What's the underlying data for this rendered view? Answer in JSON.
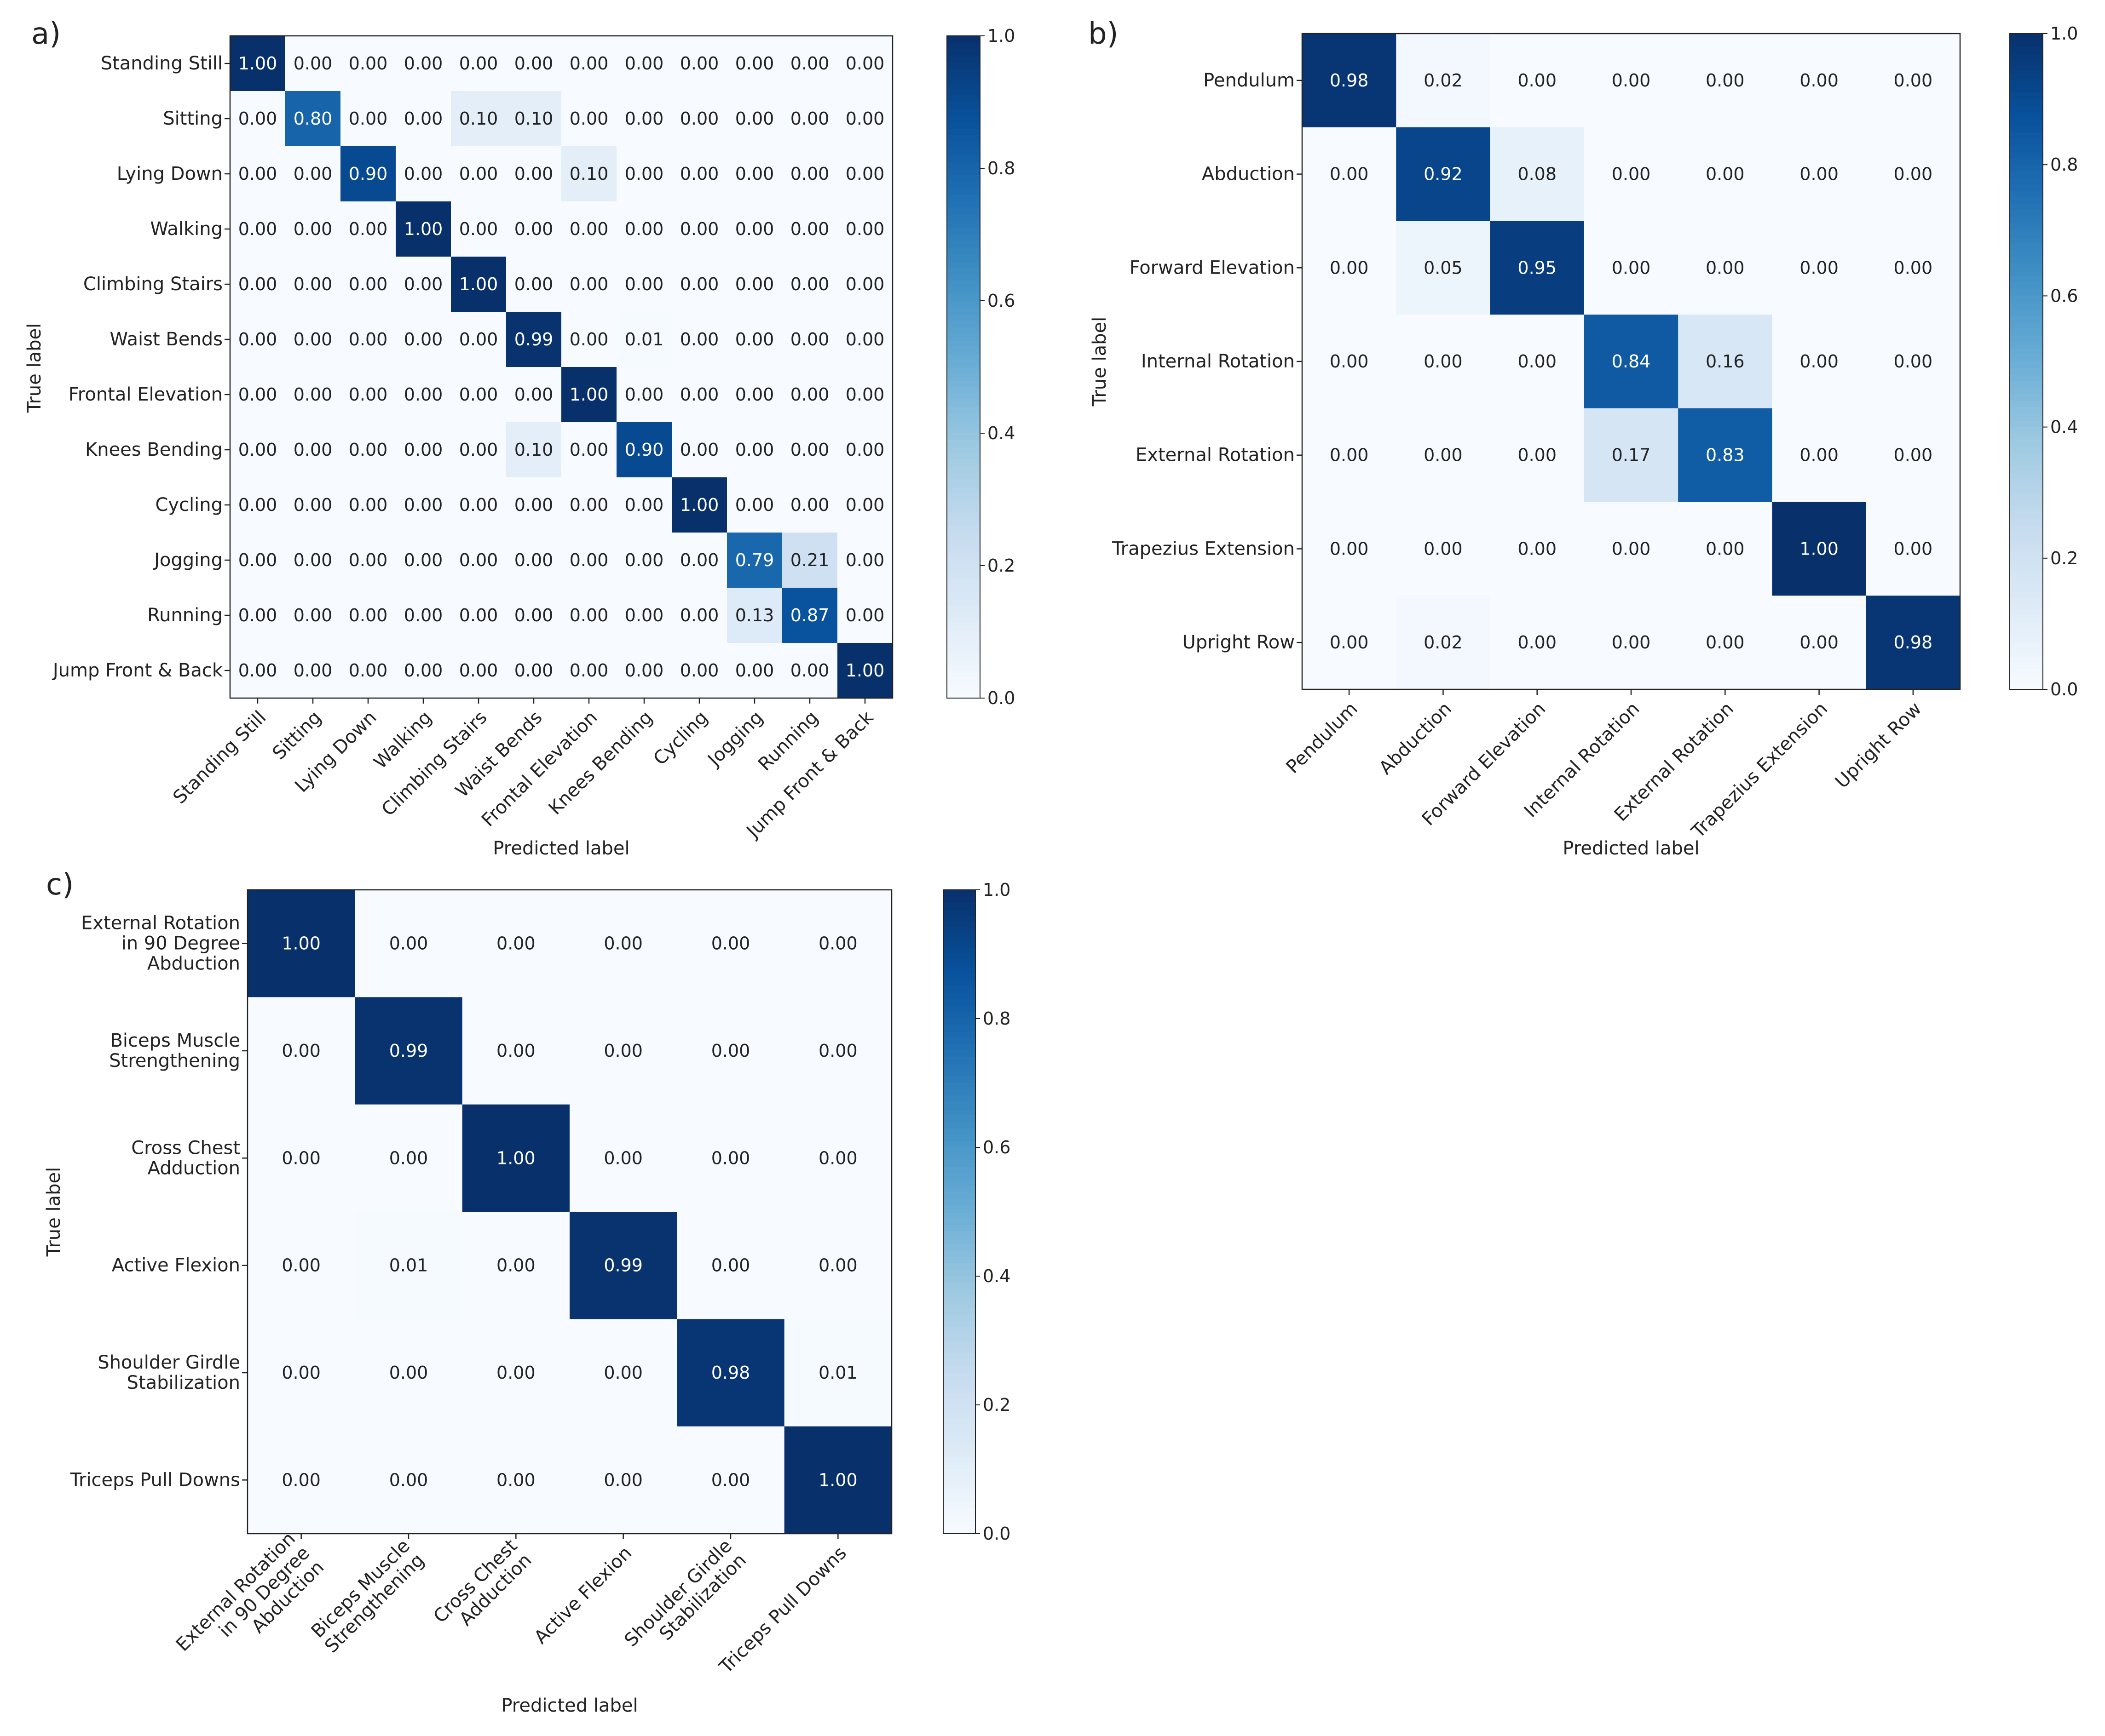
{
  "chart_data": [
    {
      "panel": "a)",
      "type": "heatmap",
      "title": "",
      "xlabel": "Predicted label",
      "ylabel": "True label",
      "row_labels": [
        "Standing Still",
        "Sitting",
        "Lying Down",
        "Walking",
        "Climbing Stairs",
        "Waist Bends",
        "Frontal Elevation",
        "Knees Bending",
        "Cycling",
        "Jogging",
        "Running",
        "Jump Front & Back"
      ],
      "col_labels": [
        "Standing Still",
        "Sitting",
        "Lying Down",
        "Walking",
        "Climbing Stairs",
        "Waist Bends",
        "Frontal Elevation",
        "Knees Bending",
        "Cycling",
        "Jogging",
        "Running",
        "Jump Front & Back"
      ],
      "values": [
        [
          "1.00",
          "0.00",
          "0.00",
          "0.00",
          "0.00",
          "0.00",
          "0.00",
          "0.00",
          "0.00",
          "0.00",
          "0.00",
          "0.00"
        ],
        [
          "0.00",
          "0.80",
          "0.00",
          "0.00",
          "0.10",
          "0.10",
          "0.00",
          "0.00",
          "0.00",
          "0.00",
          "0.00",
          "0.00"
        ],
        [
          "0.00",
          "0.00",
          "0.90",
          "0.00",
          "0.00",
          "0.00",
          "0.10",
          "0.00",
          "0.00",
          "0.00",
          "0.00",
          "0.00"
        ],
        [
          "0.00",
          "0.00",
          "0.00",
          "1.00",
          "0.00",
          "0.00",
          "0.00",
          "0.00",
          "0.00",
          "0.00",
          "0.00",
          "0.00"
        ],
        [
          "0.00",
          "0.00",
          "0.00",
          "0.00",
          "1.00",
          "0.00",
          "0.00",
          "0.00",
          "0.00",
          "0.00",
          "0.00",
          "0.00"
        ],
        [
          "0.00",
          "0.00",
          "0.00",
          "0.00",
          "0.00",
          "0.99",
          "0.00",
          "0.01",
          "0.00",
          "0.00",
          "0.00",
          "0.00"
        ],
        [
          "0.00",
          "0.00",
          "0.00",
          "0.00",
          "0.00",
          "0.00",
          "1.00",
          "0.00",
          "0.00",
          "0.00",
          "0.00",
          "0.00"
        ],
        [
          "0.00",
          "0.00",
          "0.00",
          "0.00",
          "0.00",
          "0.10",
          "0.00",
          "0.90",
          "0.00",
          "0.00",
          "0.00",
          "0.00"
        ],
        [
          "0.00",
          "0.00",
          "0.00",
          "0.00",
          "0.00",
          "0.00",
          "0.00",
          "0.00",
          "1.00",
          "0.00",
          "0.00",
          "0.00"
        ],
        [
          "0.00",
          "0.00",
          "0.00",
          "0.00",
          "0.00",
          "0.00",
          "0.00",
          "0.00",
          "0.00",
          "0.79",
          "0.21",
          "0.00"
        ],
        [
          "0.00",
          "0.00",
          "0.00",
          "0.00",
          "0.00",
          "0.00",
          "0.00",
          "0.00",
          "0.00",
          "0.13",
          "0.87",
          "0.00"
        ],
        [
          "0.00",
          "0.00",
          "0.00",
          "0.00",
          "0.00",
          "0.00",
          "0.00",
          "0.00",
          "0.00",
          "0.00",
          "0.00",
          "1.00"
        ]
      ],
      "colorbar": {
        "range": [
          0,
          1
        ],
        "ticks": [
          "1.0",
          "0.8",
          "0.6",
          "0.4",
          "0.2",
          "0.0"
        ]
      }
    },
    {
      "panel": "b)",
      "type": "heatmap",
      "title": "",
      "xlabel": "Predicted label",
      "ylabel": "True label",
      "row_labels": [
        "Pendulum",
        "Abduction",
        "Forward Elevation",
        "Internal Rotation",
        "External Rotation",
        "Trapezius Extension",
        "Upright Row"
      ],
      "col_labels": [
        "Pendulum",
        "Abduction",
        "Forward Elevation",
        "Internal Rotation",
        "External Rotation",
        "Trapezius Extension",
        "Upright Row"
      ],
      "values": [
        [
          "0.98",
          "0.02",
          "0.00",
          "0.00",
          "0.00",
          "0.00",
          "0.00"
        ],
        [
          "0.00",
          "0.92",
          "0.08",
          "0.00",
          "0.00",
          "0.00",
          "0.00"
        ],
        [
          "0.00",
          "0.05",
          "0.95",
          "0.00",
          "0.00",
          "0.00",
          "0.00"
        ],
        [
          "0.00",
          "0.00",
          "0.00",
          "0.84",
          "0.16",
          "0.00",
          "0.00"
        ],
        [
          "0.00",
          "0.00",
          "0.00",
          "0.17",
          "0.83",
          "0.00",
          "0.00"
        ],
        [
          "0.00",
          "0.00",
          "0.00",
          "0.00",
          "0.00",
          "1.00",
          "0.00"
        ],
        [
          "0.00",
          "0.02",
          "0.00",
          "0.00",
          "0.00",
          "0.00",
          "0.98"
        ]
      ],
      "colorbar": {
        "range": [
          0,
          1
        ],
        "ticks": [
          "1.0",
          "0.8",
          "0.6",
          "0.4",
          "0.2",
          "0.0"
        ]
      }
    },
    {
      "panel": "c)",
      "type": "heatmap",
      "title": "",
      "xlabel": "Predicted label",
      "ylabel": "True label",
      "row_labels": [
        [
          "External Rotation",
          "in 90 Degree",
          "Abduction"
        ],
        [
          "Biceps Muscle",
          "Strengthening"
        ],
        [
          "Cross Chest",
          "Adduction"
        ],
        [
          "Active Flexion"
        ],
        [
          "Shoulder Girdle",
          "Stabilization"
        ],
        [
          "Triceps Pull Downs"
        ]
      ],
      "col_labels": [
        [
          "External Rotation",
          "in 90 Degree",
          "Abduction"
        ],
        [
          "Biceps Muscle",
          "Strengthening"
        ],
        [
          "Cross Chest",
          "Adduction"
        ],
        [
          "Active Flexion"
        ],
        [
          "Shoulder Girdle",
          "Stabilization"
        ],
        [
          "Triceps Pull Downs"
        ]
      ],
      "values": [
        [
          "1.00",
          "0.00",
          "0.00",
          "0.00",
          "0.00",
          "0.00"
        ],
        [
          "0.00",
          "0.99",
          "0.00",
          "0.00",
          "0.00",
          "0.00"
        ],
        [
          "0.00",
          "0.00",
          "1.00",
          "0.00",
          "0.00",
          "0.00"
        ],
        [
          "0.00",
          "0.01",
          "0.00",
          "0.99",
          "0.00",
          "0.00"
        ],
        [
          "0.00",
          "0.00",
          "0.00",
          "0.00",
          "0.98",
          "0.01"
        ],
        [
          "0.00",
          "0.00",
          "0.00",
          "0.00",
          "0.00",
          "1.00"
        ]
      ],
      "colorbar": {
        "range": [
          0,
          1
        ],
        "ticks": [
          "1.0",
          "0.8",
          "0.6",
          "0.4",
          "0.2",
          "0.0"
        ]
      }
    }
  ],
  "colors": {
    "scale_low": "#f7fbff",
    "scale_mid": "#6baed6",
    "scale_high": "#08306b",
    "axis": "#222222",
    "text_dark": "#222222",
    "text_light": "#ffffff"
  }
}
